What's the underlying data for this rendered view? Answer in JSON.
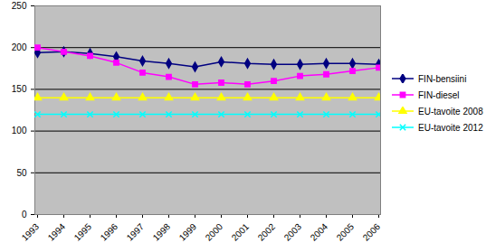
{
  "chart_data": {
    "type": "line",
    "x": [
      "1993",
      "1994",
      "1995",
      "1996",
      "1997",
      "1998",
      "1999",
      "2000",
      "2001",
      "2002",
      "2003",
      "2004",
      "2005",
      "2006"
    ],
    "series": [
      {
        "name": "FIN-bensiini",
        "color": "#000080",
        "marker": "diamond",
        "values": [
          194,
          195,
          193,
          189,
          184,
          181,
          177,
          183,
          181,
          180,
          180,
          181,
          181,
          180
        ]
      },
      {
        "name": "FIN-diesel",
        "color": "#ff00ff",
        "marker": "square",
        "values": [
          200,
          195,
          190,
          182,
          170,
          165,
          156,
          158,
          156,
          160,
          166,
          168,
          172,
          176
        ]
      },
      {
        "name": "EU-tavoite 2008",
        "color": "#ffff00",
        "marker": "triangle",
        "values": [
          140,
          140,
          140,
          140,
          140,
          140,
          140,
          140,
          140,
          140,
          140,
          140,
          140,
          140
        ]
      },
      {
        "name": "EU-tavoite 2012",
        "color": "#00ffff",
        "marker": "times",
        "values": [
          120,
          120,
          120,
          120,
          120,
          120,
          120,
          120,
          120,
          120,
          120,
          120,
          120,
          120
        ]
      }
    ],
    "ylim": [
      0,
      250
    ],
    "yticks": [
      0,
      50,
      100,
      150,
      200,
      250
    ],
    "grid": true,
    "legend": "right"
  }
}
